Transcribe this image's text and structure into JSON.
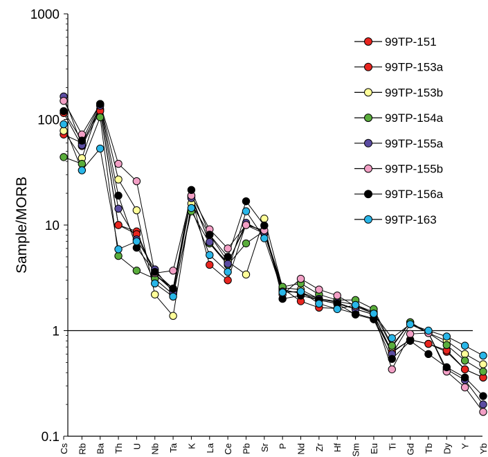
{
  "chart_data": {
    "type": "line",
    "yscale": "log",
    "ylim": [
      0.1,
      1000
    ],
    "y_ticks": [
      "0.1",
      "1",
      "10",
      "100",
      "1000"
    ],
    "ylabel": "Sample/MORB",
    "xlabel": "",
    "reference_line": 1,
    "grid": false,
    "legend_position": "top-right",
    "categories": [
      "Cs",
      "Rb",
      "Ba",
      "Th",
      "U",
      "Nb",
      "Ta",
      "K",
      "La",
      "Ce",
      "Pb",
      "Sr",
      "P",
      "Nd",
      "Zr",
      "Hf",
      "Sm",
      "Eu",
      "Ti",
      "Gd",
      "Tb",
      "Dy",
      "Y",
      "Yb"
    ],
    "series": [
      {
        "name": "99TP-151",
        "color": "#e8251f",
        "values": [
          72,
          60,
          125,
          10,
          8.7,
          3.4,
          2.5,
          18.5,
          4.2,
          3.0,
          10.3,
          8.6,
          2.5,
          1.9,
          1.65,
          1.62,
          1.45,
          1.3,
          0.62,
          0.82,
          0.75,
          0.63,
          0.43,
          0.36
        ]
      },
      {
        "name": "99TP-153a",
        "color": "#e8251f",
        "values": [
          115,
          56,
          120,
          10,
          8.2,
          3.4,
          2.4,
          19,
          6.7,
          4.4,
          10,
          8.3,
          2.45,
          2.25,
          1.95,
          1.8,
          1.6,
          1.42,
          0.63,
          0.82,
          0.75,
          0.65,
          0.43,
          0.36
        ]
      },
      {
        "name": "99TP-153b",
        "color": "#ffff99",
        "values": [
          78,
          43,
          140,
          27,
          13.8,
          2.2,
          1.38,
          16,
          8.1,
          4.5,
          3.4,
          11.5,
          2.55,
          2.45,
          2.0,
          1.9,
          1.75,
          1.5,
          0.7,
          1.2,
          0.95,
          0.8,
          0.6,
          0.48
        ]
      },
      {
        "name": "99TP-154a",
        "color": "#5aad3c",
        "values": [
          44,
          38,
          105,
          5.1,
          3.7,
          3.1,
          2.2,
          13.5,
          6.7,
          4.2,
          6.7,
          8.8,
          2.6,
          2.8,
          2.2,
          1.95,
          1.95,
          1.6,
          0.72,
          1.2,
          0.95,
          0.73,
          0.52,
          0.41
        ]
      },
      {
        "name": "99TP-155a",
        "color": "#5b4ca1",
        "values": [
          165,
          57,
          135,
          14.3,
          7.3,
          3.8,
          2.3,
          18,
          6.9,
          4.3,
          10.5,
          8.5,
          2.35,
          2.3,
          2.0,
          1.85,
          1.6,
          1.42,
          0.6,
          1.15,
          0.95,
          0.43,
          0.34,
          0.2
        ]
      },
      {
        "name": "99TP-155b",
        "color": "#f29fc5",
        "values": [
          150,
          72,
          140,
          38,
          26,
          3.5,
          3.7,
          19,
          9.1,
          6.0,
          10,
          8.9,
          2.2,
          3.1,
          2.45,
          2.15,
          1.7,
          1.45,
          0.43,
          0.93,
          0.95,
          0.41,
          0.29,
          0.17
        ]
      },
      {
        "name": "99TP-156a",
        "color": "#000000",
        "values": [
          120,
          63,
          140,
          19,
          6.1,
          3.6,
          2.5,
          21.5,
          8.1,
          5.0,
          16.8,
          9.9,
          2.0,
          2.15,
          1.95,
          1.8,
          1.42,
          1.28,
          0.54,
          0.8,
          0.6,
          0.45,
          0.36,
          0.24
        ]
      },
      {
        "name": "99TP-163",
        "color": "#29b6e8",
        "values": [
          90,
          33,
          53,
          5.9,
          7.0,
          2.8,
          2.1,
          14.5,
          5.2,
          3.6,
          13.5,
          7.5,
          2.3,
          2.35,
          1.8,
          1.6,
          1.75,
          1.45,
          0.85,
          1.15,
          1.0,
          0.88,
          0.72,
          0.58
        ]
      }
    ]
  }
}
